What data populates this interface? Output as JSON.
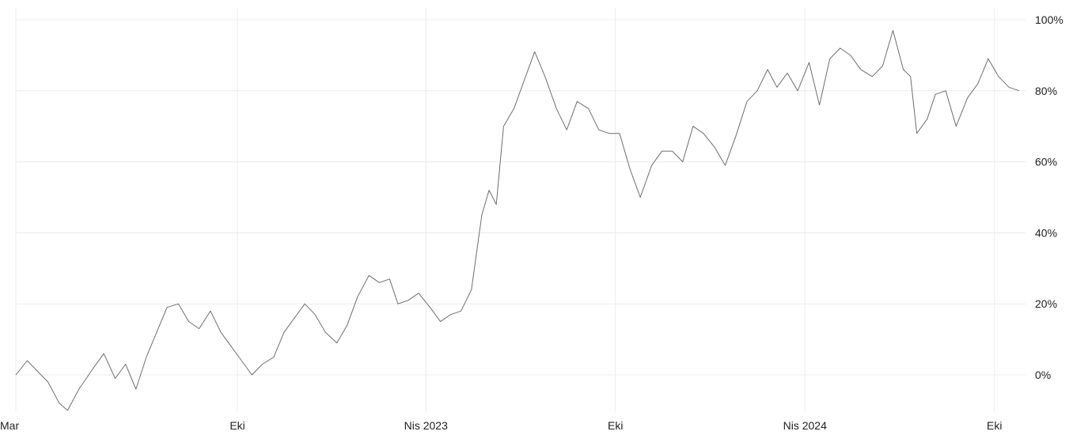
{
  "chart_data": {
    "type": "line",
    "title": "",
    "xlabel": "",
    "ylabel": "",
    "x_tick_labels": [
      "Mar",
      "Eki",
      "Nis 2023",
      "Eki",
      "Nis 2024",
      "Eki"
    ],
    "x_tick_dates": [
      "2022-03-01",
      "2022-10-01",
      "2023-04-01",
      "2023-10-01",
      "2024-04-01",
      "2024-10-01"
    ],
    "y_tick_labels": [
      "100%",
      "80%",
      "60%",
      "40%",
      "20%",
      "0%"
    ],
    "y_ticks": [
      100,
      80,
      60,
      40,
      20,
      0
    ],
    "ylim": [
      -12,
      100
    ],
    "xlim": [
      "2022-03-01",
      "2024-10-31"
    ],
    "grid": true,
    "y_axis_position": "right",
    "line_color": "#6e6e6e",
    "series": [
      {
        "values": [
          [
            "2022-03-01",
            0
          ],
          [
            "2022-03-12",
            4
          ],
          [
            "2022-03-22",
            1
          ],
          [
            "2022-04-01",
            -2
          ],
          [
            "2022-04-12",
            -8
          ],
          [
            "2022-04-20",
            -10
          ],
          [
            "2022-05-01",
            -4
          ],
          [
            "2022-05-15",
            2
          ],
          [
            "2022-05-25",
            6
          ],
          [
            "2022-06-05",
            -1
          ],
          [
            "2022-06-15",
            3
          ],
          [
            "2022-06-25",
            -4
          ],
          [
            "2022-07-05",
            5
          ],
          [
            "2022-07-15",
            12
          ],
          [
            "2022-07-25",
            19
          ],
          [
            "2022-08-05",
            20
          ],
          [
            "2022-08-15",
            15
          ],
          [
            "2022-08-25",
            13
          ],
          [
            "2022-09-05",
            18
          ],
          [
            "2022-09-15",
            12
          ],
          [
            "2022-09-25",
            8
          ],
          [
            "2022-10-05",
            4
          ],
          [
            "2022-10-15",
            0
          ],
          [
            "2022-10-25",
            3
          ],
          [
            "2022-11-05",
            5
          ],
          [
            "2022-11-15",
            12
          ],
          [
            "2022-11-25",
            16
          ],
          [
            "2022-12-05",
            20
          ],
          [
            "2022-12-15",
            17
          ],
          [
            "2022-12-25",
            12
          ],
          [
            "2023-01-05",
            9
          ],
          [
            "2023-01-15",
            14
          ],
          [
            "2023-01-25",
            22
          ],
          [
            "2023-02-05",
            28
          ],
          [
            "2023-02-15",
            26
          ],
          [
            "2023-02-25",
            27
          ],
          [
            "2023-03-05",
            20
          ],
          [
            "2023-03-15",
            21
          ],
          [
            "2023-03-25",
            23
          ],
          [
            "2023-04-05",
            19
          ],
          [
            "2023-04-15",
            15
          ],
          [
            "2023-04-25",
            17
          ],
          [
            "2023-05-05",
            18
          ],
          [
            "2023-05-15",
            24
          ],
          [
            "2023-05-25",
            45
          ],
          [
            "2023-06-01",
            52
          ],
          [
            "2023-06-08",
            48
          ],
          [
            "2023-06-15",
            70
          ],
          [
            "2023-06-25",
            75
          ],
          [
            "2023-07-05",
            83
          ],
          [
            "2023-07-15",
            91
          ],
          [
            "2023-07-25",
            84
          ],
          [
            "2023-08-05",
            75
          ],
          [
            "2023-08-15",
            69
          ],
          [
            "2023-08-25",
            77
          ],
          [
            "2023-09-05",
            75
          ],
          [
            "2023-09-15",
            69
          ],
          [
            "2023-09-25",
            68
          ],
          [
            "2023-10-05",
            68
          ],
          [
            "2023-10-15",
            58
          ],
          [
            "2023-10-25",
            50
          ],
          [
            "2023-11-05",
            59
          ],
          [
            "2023-11-15",
            63
          ],
          [
            "2023-11-25",
            63
          ],
          [
            "2023-12-05",
            60
          ],
          [
            "2023-12-15",
            70
          ],
          [
            "2023-12-25",
            68
          ],
          [
            "2024-01-05",
            64
          ],
          [
            "2024-01-15",
            59
          ],
          [
            "2024-01-25",
            67
          ],
          [
            "2024-02-05",
            77
          ],
          [
            "2024-02-15",
            80
          ],
          [
            "2024-02-25",
            86
          ],
          [
            "2024-03-05",
            81
          ],
          [
            "2024-03-15",
            85
          ],
          [
            "2024-03-25",
            80
          ],
          [
            "2024-04-05",
            88
          ],
          [
            "2024-04-15",
            76
          ],
          [
            "2024-04-25",
            89
          ],
          [
            "2024-05-05",
            92
          ],
          [
            "2024-05-15",
            90
          ],
          [
            "2024-05-25",
            86
          ],
          [
            "2024-06-05",
            84
          ],
          [
            "2024-06-15",
            87
          ],
          [
            "2024-06-25",
            97
          ],
          [
            "2024-07-05",
            86
          ],
          [
            "2024-07-12",
            84
          ],
          [
            "2024-07-18",
            68
          ],
          [
            "2024-07-28",
            72
          ],
          [
            "2024-08-05",
            79
          ],
          [
            "2024-08-15",
            80
          ],
          [
            "2024-08-25",
            70
          ],
          [
            "2024-09-05",
            78
          ],
          [
            "2024-09-15",
            82
          ],
          [
            "2024-09-25",
            89
          ],
          [
            "2024-10-05",
            84
          ],
          [
            "2024-10-15",
            81
          ],
          [
            "2024-10-25",
            80
          ]
        ]
      }
    ]
  }
}
